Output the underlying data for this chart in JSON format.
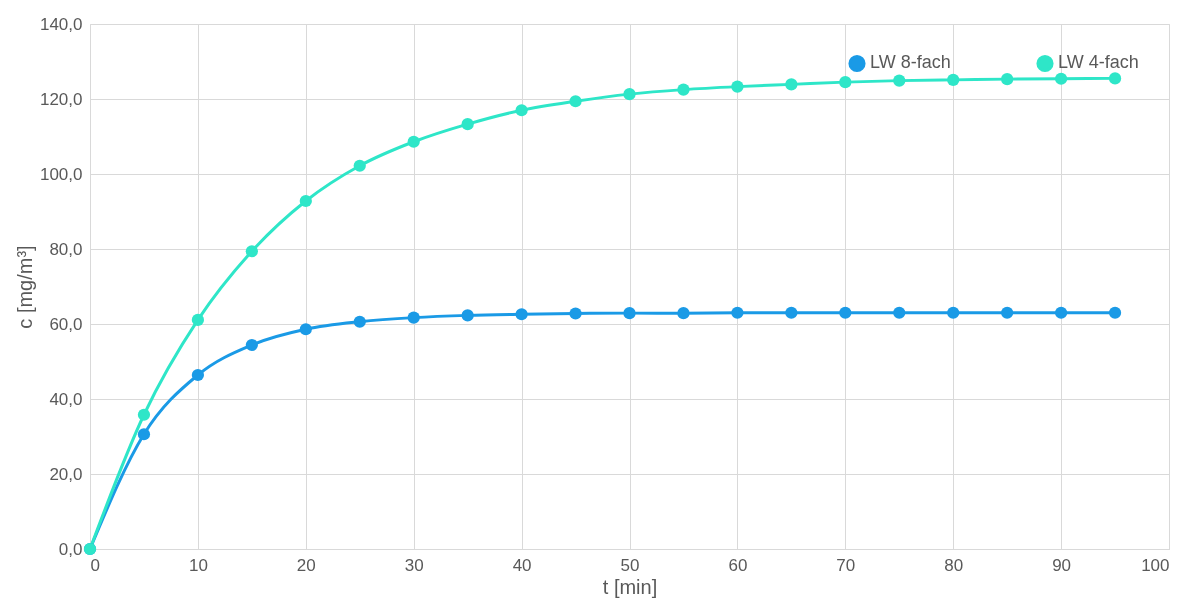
{
  "chart_data": {
    "type": "line",
    "xlabel": "t [min]",
    "ylabel": "c [mg/m³]",
    "x": [
      0,
      5,
      10,
      15,
      20,
      25,
      30,
      35,
      40,
      45,
      50,
      55,
      60,
      65,
      70,
      75,
      80,
      85,
      90,
      95
    ],
    "series": [
      {
        "name": "LW 8-fach",
        "color": "#1a9ae6",
        "values": [
          0,
          30.6,
          46.4,
          54.4,
          58.6,
          60.6,
          61.7,
          62.3,
          62.6,
          62.8,
          62.9,
          62.9,
          63.0,
          63.0,
          63.0,
          63.0,
          63.0,
          63.0,
          63.0,
          63.0
        ]
      },
      {
        "name": "LW 4-fach",
        "color": "#2ee6c8",
        "values": [
          0,
          35.8,
          61.1,
          79.4,
          92.8,
          102.2,
          108.6,
          113.3,
          117.0,
          119.4,
          121.3,
          122.5,
          123.3,
          123.9,
          124.5,
          124.9,
          125.1,
          125.3,
          125.4,
          125.5
        ]
      }
    ],
    "xlim": [
      0,
      100
    ],
    "xticks": [
      0,
      10,
      20,
      30,
      40,
      50,
      60,
      70,
      80,
      90,
      100
    ],
    "ylim": [
      0,
      140
    ],
    "yticks": [
      {
        "value": 0,
        "label": "0,0"
      },
      {
        "value": 20,
        "label": "20,0"
      },
      {
        "value": 40,
        "label": "40,0"
      },
      {
        "value": 60,
        "label": "60,0"
      },
      {
        "value": 80,
        "label": "80,0"
      },
      {
        "value": 100,
        "label": "100,0"
      },
      {
        "value": 120,
        "label": "120,0"
      },
      {
        "value": 140,
        "label": "140,0"
      }
    ],
    "grid": true,
    "legend": "top right",
    "marker": "circle",
    "line_style": "solid"
  }
}
